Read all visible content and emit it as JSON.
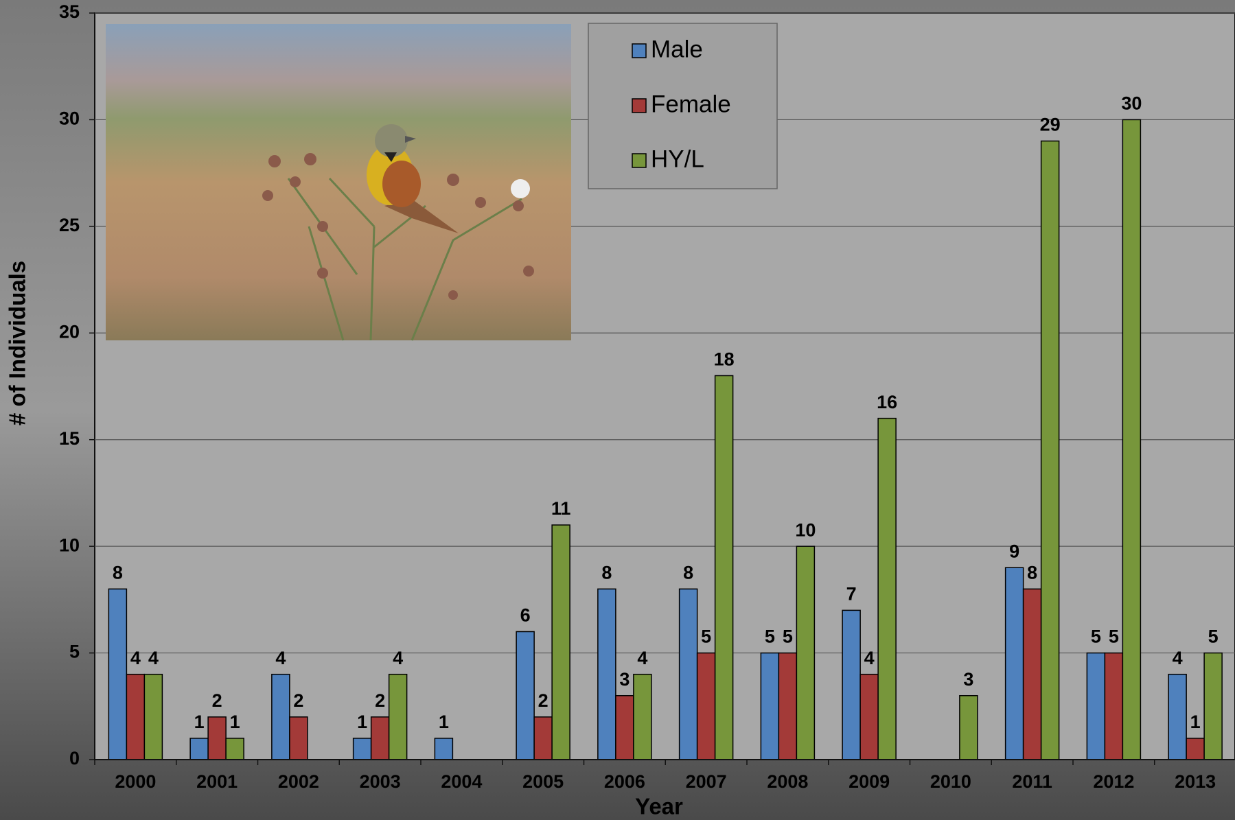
{
  "chart_data": {
    "type": "bar",
    "x_label": "Year",
    "y_label": "# of Individuals",
    "categories": [
      "2000",
      "2001",
      "2002",
      "2003",
      "2004",
      "2005",
      "2006",
      "2007",
      "2008",
      "2009",
      "2010",
      "2011",
      "2012",
      "2013"
    ],
    "series": [
      {
        "name": "Male",
        "color": "#4f81bd",
        "values": [
          8,
          1,
          4,
          1,
          1,
          6,
          8,
          8,
          5,
          7,
          null,
          9,
          5,
          4
        ]
      },
      {
        "name": "Female",
        "color": "#a33a38",
        "values": [
          4,
          2,
          2,
          2,
          null,
          2,
          3,
          5,
          5,
          4,
          null,
          8,
          5,
          1
        ]
      },
      {
        "name": "HY/L",
        "color": "#77963b",
        "values": [
          4,
          1,
          null,
          4,
          null,
          11,
          4,
          18,
          10,
          16,
          3,
          29,
          30,
          5
        ]
      }
    ],
    "ylim": [
      0,
      35
    ],
    "yticks": [
      0,
      5,
      10,
      15,
      20,
      25,
      30,
      35
    ],
    "grid": true,
    "legend": "top"
  }
}
